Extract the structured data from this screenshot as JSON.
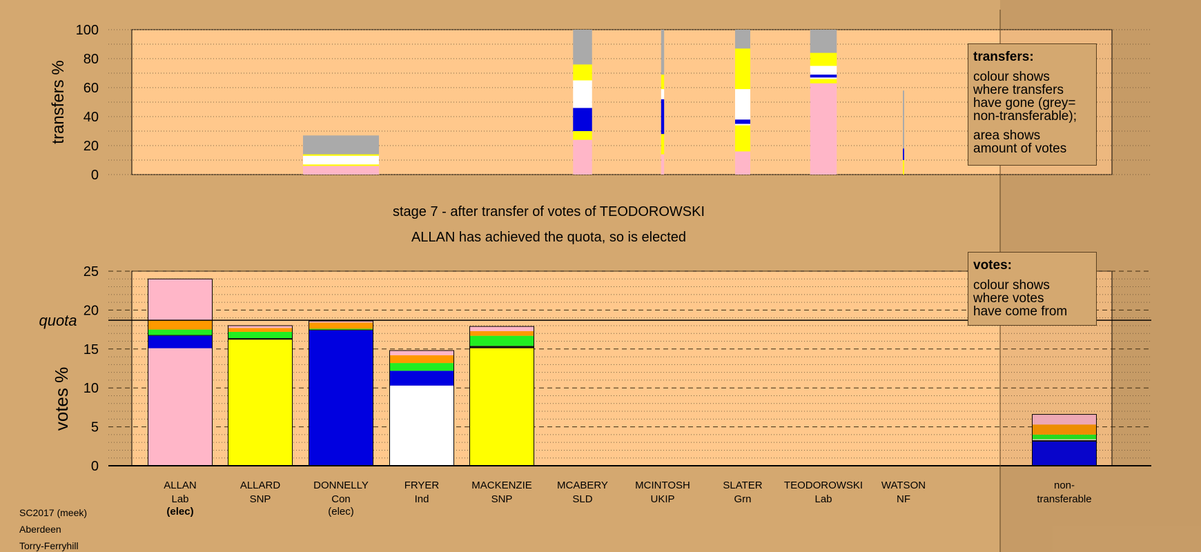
{
  "chart_data": [
    {
      "type": "bar",
      "name": "transfers",
      "ylabel": "transfers %",
      "ylim": [
        0,
        100
      ],
      "yticks": [
        0,
        20,
        40,
        60,
        80,
        100
      ],
      "stack_order": [
        "pink",
        "yellow",
        "white",
        "blue",
        "green",
        "orange",
        "grey"
      ],
      "bars": [
        {
          "candidate": "ALLARD",
          "segments": [],
          "width_pct": 0
        },
        {
          "candidate": "DONNELLY",
          "segments": [
            {
              "color": "pink",
              "value": 6
            },
            {
              "color": "yellow",
              "value": 1
            },
            {
              "color": "white",
              "value": 6
            },
            {
              "color": "yellow",
              "value": 1
            },
            {
              "color": "grey",
              "value": 13
            }
          ],
          "width_pct": 100
        },
        {
          "candidate": "FRYER",
          "segments": [],
          "width_pct": 0
        },
        {
          "candidate": "MACKENZIE",
          "segments": [],
          "width_pct": 0
        },
        {
          "candidate": "MCABERY",
          "segments": [
            {
              "color": "pink",
              "value": 24
            },
            {
              "color": "yellow",
              "value": 6
            },
            {
              "color": "blue",
              "value": 16
            },
            {
              "color": "white",
              "value": 19
            },
            {
              "color": "yellow",
              "value": 11
            },
            {
              "color": "grey",
              "value": 24
            }
          ],
          "width_pct": 25
        },
        {
          "candidate": "MCINTOSH",
          "segments": [
            {
              "color": "pink",
              "value": 14
            },
            {
              "color": "yellow",
              "value": 14
            },
            {
              "color": "blue",
              "value": 24
            },
            {
              "color": "white",
              "value": 7
            },
            {
              "color": "yellow",
              "value": 10
            },
            {
              "color": "grey",
              "value": 31
            }
          ],
          "width_pct": 4
        },
        {
          "candidate": "SLATER",
          "segments": [
            {
              "color": "pink",
              "value": 16
            },
            {
              "color": "yellow",
              "value": 18
            },
            {
              "color": "white",
              "value": 1
            },
            {
              "color": "blue",
              "value": 3
            },
            {
              "color": "white",
              "value": 21
            },
            {
              "color": "yellow",
              "value": 28
            },
            {
              "color": "grey",
              "value": 13
            }
          ],
          "width_pct": 20
        },
        {
          "candidate": "TEODOROWSKI",
          "segments": [
            {
              "color": "pink",
              "value": 63
            },
            {
              "color": "yellow",
              "value": 3
            },
            {
              "color": "white",
              "value": 1
            },
            {
              "color": "blue",
              "value": 2
            },
            {
              "color": "white",
              "value": 6
            },
            {
              "color": "yellow",
              "value": 9
            },
            {
              "color": "grey",
              "value": 16
            }
          ],
          "width_pct": 35
        },
        {
          "candidate": "WATSON",
          "segments": [
            {
              "color": "yellow",
              "value": 10
            },
            {
              "color": "blue",
              "value": 8
            },
            {
              "color": "grey",
              "value": 40
            }
          ],
          "width_pct": 1.5
        }
      ]
    },
    {
      "type": "bar",
      "name": "votes",
      "ylabel": "votes %",
      "ylim": [
        0,
        25
      ],
      "yticks": [
        0,
        5,
        10,
        15,
        20,
        25
      ],
      "quota": 18.7,
      "quota_label": "quota",
      "categories": [
        {
          "name": "ALLAN",
          "party": "Lab",
          "status": "(elec)",
          "status_bold": true
        },
        {
          "name": "ALLARD",
          "party": "SNP",
          "status": "",
          "status_bold": false
        },
        {
          "name": "DONNELLY",
          "party": "Con",
          "status": "(elec)",
          "status_bold": false
        },
        {
          "name": "FRYER",
          "party": "Ind",
          "status": "",
          "status_bold": false
        },
        {
          "name": "MACKENZIE",
          "party": "SNP",
          "status": "",
          "status_bold": false
        },
        {
          "name": "MCABERY",
          "party": "SLD",
          "status": "",
          "status_bold": false
        },
        {
          "name": "MCINTOSH",
          "party": "UKIP",
          "status": "",
          "status_bold": false
        },
        {
          "name": "SLATER",
          "party": "Grn",
          "status": "",
          "status_bold": false
        },
        {
          "name": "TEODOROWSKI",
          "party": "Lab",
          "status": "",
          "status_bold": false
        },
        {
          "name": "WATSON",
          "party": "NF",
          "status": "",
          "status_bold": false
        }
      ],
      "stacks": [
        [
          {
            "color": "pink",
            "value": 15.1
          },
          {
            "color": "blue",
            "value": 1.6
          },
          {
            "color": "black",
            "value": 0.1
          },
          {
            "color": "green",
            "value": 0.7
          },
          {
            "color": "orange",
            "value": 1.2
          },
          {
            "color": "pink",
            "value": 5.3
          }
        ],
        [
          {
            "color": "yellow",
            "value": 16.2
          },
          {
            "color": "black",
            "value": 0.2
          },
          {
            "color": "green",
            "value": 0.8
          },
          {
            "color": "orange",
            "value": 0.5
          },
          {
            "color": "pink",
            "value": 0.3
          }
        ],
        [
          {
            "color": "blue",
            "value": 17.4
          },
          {
            "color": "black",
            "value": 0.1
          },
          {
            "color": "green",
            "value": 0.1
          },
          {
            "color": "orange",
            "value": 0.8
          },
          {
            "color": "pink",
            "value": 0.2
          }
        ],
        [
          {
            "color": "white",
            "value": 10.3
          },
          {
            "color": "blue",
            "value": 1.9
          },
          {
            "color": "green",
            "value": 1.0
          },
          {
            "color": "orange",
            "value": 1.0
          },
          {
            "color": "pink",
            "value": 0.6
          }
        ],
        [
          {
            "color": "yellow",
            "value": 15.1
          },
          {
            "color": "black",
            "value": 0.3
          },
          {
            "color": "green",
            "value": 1.3
          },
          {
            "color": "orange",
            "value": 0.6
          },
          {
            "color": "pink",
            "value": 0.6
          }
        ],
        [],
        [],
        [],
        [],
        []
      ],
      "nontransferable": {
        "label_line1": "non-",
        "label_line2": "transferable",
        "stack": [
          {
            "color": "blue",
            "value": 3.1
          },
          {
            "color": "black",
            "value": 0.2
          },
          {
            "color": "white",
            "value": 0.1
          },
          {
            "color": "green",
            "value": 0.6
          },
          {
            "color": "orange",
            "value": 1.3
          },
          {
            "color": "pink",
            "value": 1.3
          }
        ]
      }
    }
  ],
  "colors": {
    "pink": "#ffb6c8",
    "yellow": "#ffff00",
    "white": "#ffffff",
    "blue": "#0000e0",
    "green": "#22ee22",
    "orange": "#ff9900",
    "grey": "#aaaaaa",
    "black": "#111111",
    "background": "#d4a870",
    "plot_bg": "#ffc88c"
  },
  "legends": {
    "transfers": {
      "title": "transfers:",
      "lines1": [
        "colour shows",
        "where transfers",
        "have gone (grey=",
        "non-transferable);"
      ],
      "lines2": [
        "area shows",
        "amount of votes"
      ]
    },
    "votes": {
      "title": "votes:",
      "lines1": [
        "colour shows",
        "where votes",
        "have come from"
      ]
    }
  },
  "stage": {
    "line1": "stage 7 - after transfer of votes of TEODOROWSKI",
    "line2": "ALLAN has achieved the quota, so is elected"
  },
  "footer": [
    "SC2017 (meek)",
    "Aberdeen",
    "Torry-Ferryhill"
  ]
}
